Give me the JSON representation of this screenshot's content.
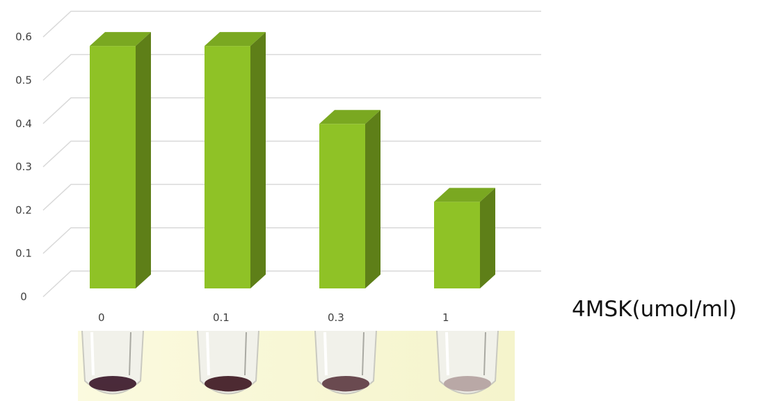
{
  "chart_data": {
    "type": "bar",
    "style": "3d-column",
    "categories": [
      "0",
      "0.1",
      "0.3",
      "1"
    ],
    "values": [
      0.56,
      0.56,
      0.38,
      0.2
    ],
    "title": "",
    "xlabel": "4MSK(umol/ml)",
    "ylabel": "",
    "ylim": [
      0,
      0.6
    ],
    "yticks": [
      "0",
      "0.1",
      "0.2",
      "0.3",
      "0.4",
      "0.5",
      "0.6"
    ],
    "grid": true,
    "legend": "none",
    "colors": {
      "front": "#8fc226",
      "side": "#5e7f18",
      "top": "#7aa821",
      "grid": "#d9d9d9"
    }
  },
  "photo": {
    "caption": "",
    "tubes": 4,
    "background": "#f7f6d4",
    "pellet_colors": [
      "#4a2a3a",
      "#4d2a32",
      "#6a4a50",
      "#b9a8a6"
    ]
  }
}
